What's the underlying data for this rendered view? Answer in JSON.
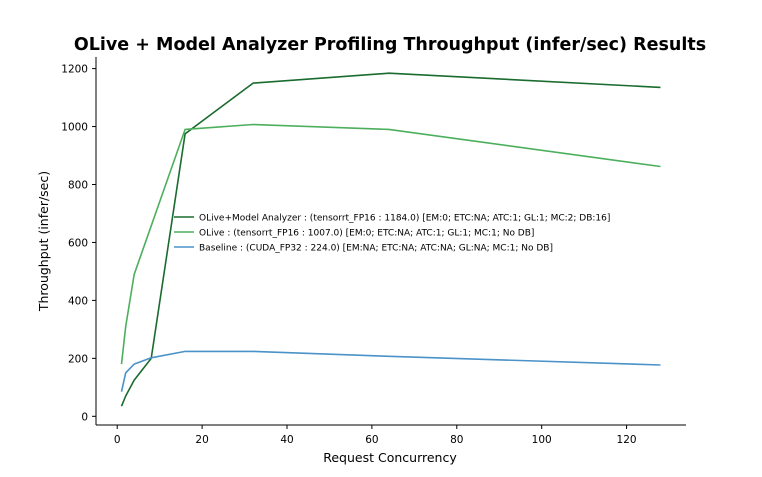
{
  "chart_data": {
    "type": "line",
    "title": "OLive + Model Analyzer Profiling Throughput (infer/sec) Results",
    "xlabel": "Request Concurrency",
    "ylabel": "Throughput (infer/sec)",
    "xlim": [
      -5,
      134
    ],
    "ylim": [
      -30,
      1240
    ],
    "xticks": [
      0,
      20,
      40,
      60,
      80,
      100,
      120
    ],
    "yticks": [
      0,
      200,
      400,
      600,
      800,
      1000,
      1200
    ],
    "grid": false,
    "legend_position": "center",
    "series": [
      {
        "name": "OLive+Model Analyzer : (tensorrt_FP16 : 1184.0) [EM:0; ETC:NA; ATC:1; GL:1; MC:2; DB:16]",
        "color": "#1a6b2e",
        "x": [
          1,
          2,
          4,
          8,
          16,
          32,
          64,
          128
        ],
        "y": [
          35,
          70,
          125,
          200,
          975,
          1150,
          1184,
          1135
        ]
      },
      {
        "name": "OLive : (tensorrt_FP16 : 1007.0) [EM:0; ETC:NA; ATC:1; GL:1; MC:1; No DB]",
        "color": "#4caf5d",
        "x": [
          1,
          2,
          4,
          16,
          32,
          64,
          128
        ],
        "y": [
          180,
          310,
          490,
          990,
          1007,
          990,
          862
        ]
      },
      {
        "name": "Baseline : (CUDA_FP32 : 224.0) [EM:NA; ETC:NA; ATC:NA; GL:NA; MC:1; No DB]",
        "color": "#4a92c8",
        "x": [
          1,
          2,
          4,
          8,
          16,
          32,
          64,
          128
        ],
        "y": [
          85,
          150,
          180,
          202,
          224,
          224,
          207,
          177
        ]
      }
    ]
  }
}
